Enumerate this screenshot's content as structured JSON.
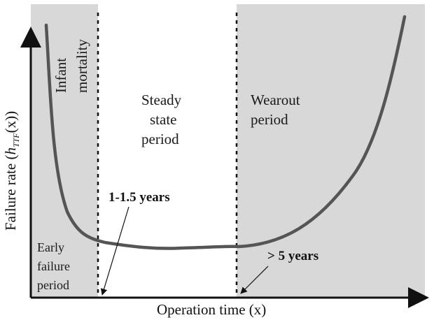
{
  "figure": {
    "x_axis_label": "Operation time (x)",
    "y_axis_label": {
      "prefix": "Failure rate (",
      "symbol": "h",
      "subscript": "TTF",
      "suffix": "(x))"
    },
    "regions": [
      {
        "name": "infant-mortality",
        "label_lines": [
          "Infant",
          "mortality"
        ]
      },
      {
        "name": "steady-state",
        "label_lines": [
          "Steady",
          "state",
          "period"
        ]
      },
      {
        "name": "wearout",
        "label_lines": [
          "Wearout",
          "period"
        ]
      },
      {
        "name": "early-failure",
        "label_lines": [
          "Early",
          "failure",
          "period"
        ]
      }
    ],
    "callouts": [
      {
        "name": "early-boundary",
        "text": "1-1.5 years"
      },
      {
        "name": "wearout-boundary",
        "text": "> 5 years"
      }
    ],
    "colors": {
      "shaded_background": "#d8d8d8",
      "curve": "#555555",
      "axis": "#111111",
      "text": "#111111"
    }
  }
}
